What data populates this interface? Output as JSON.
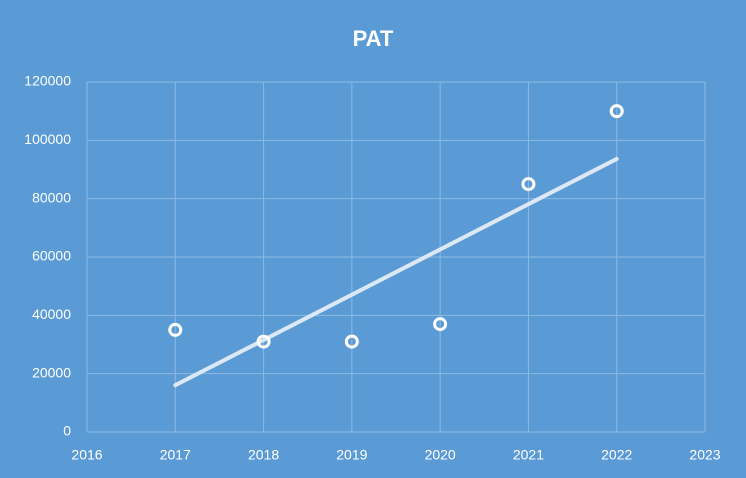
{
  "chart_data": {
    "type": "scatter",
    "title": "PAT",
    "x": [
      2017,
      2018,
      2019,
      2020,
      2021,
      2022
    ],
    "values": [
      35000,
      31000,
      31000,
      37000,
      85000,
      110000
    ],
    "color": "#ffffff",
    "trendline": "linear",
    "trendline_color": "#dce9f5",
    "xlim": [
      2016,
      2023
    ],
    "xticks": [
      2016,
      2017,
      2018,
      2019,
      2020,
      2021,
      2022,
      2023
    ],
    "ylim": [
      0,
      120000
    ],
    "yticks": [
      0,
      20000,
      40000,
      60000,
      80000,
      100000,
      120000
    ],
    "grid": true
  }
}
